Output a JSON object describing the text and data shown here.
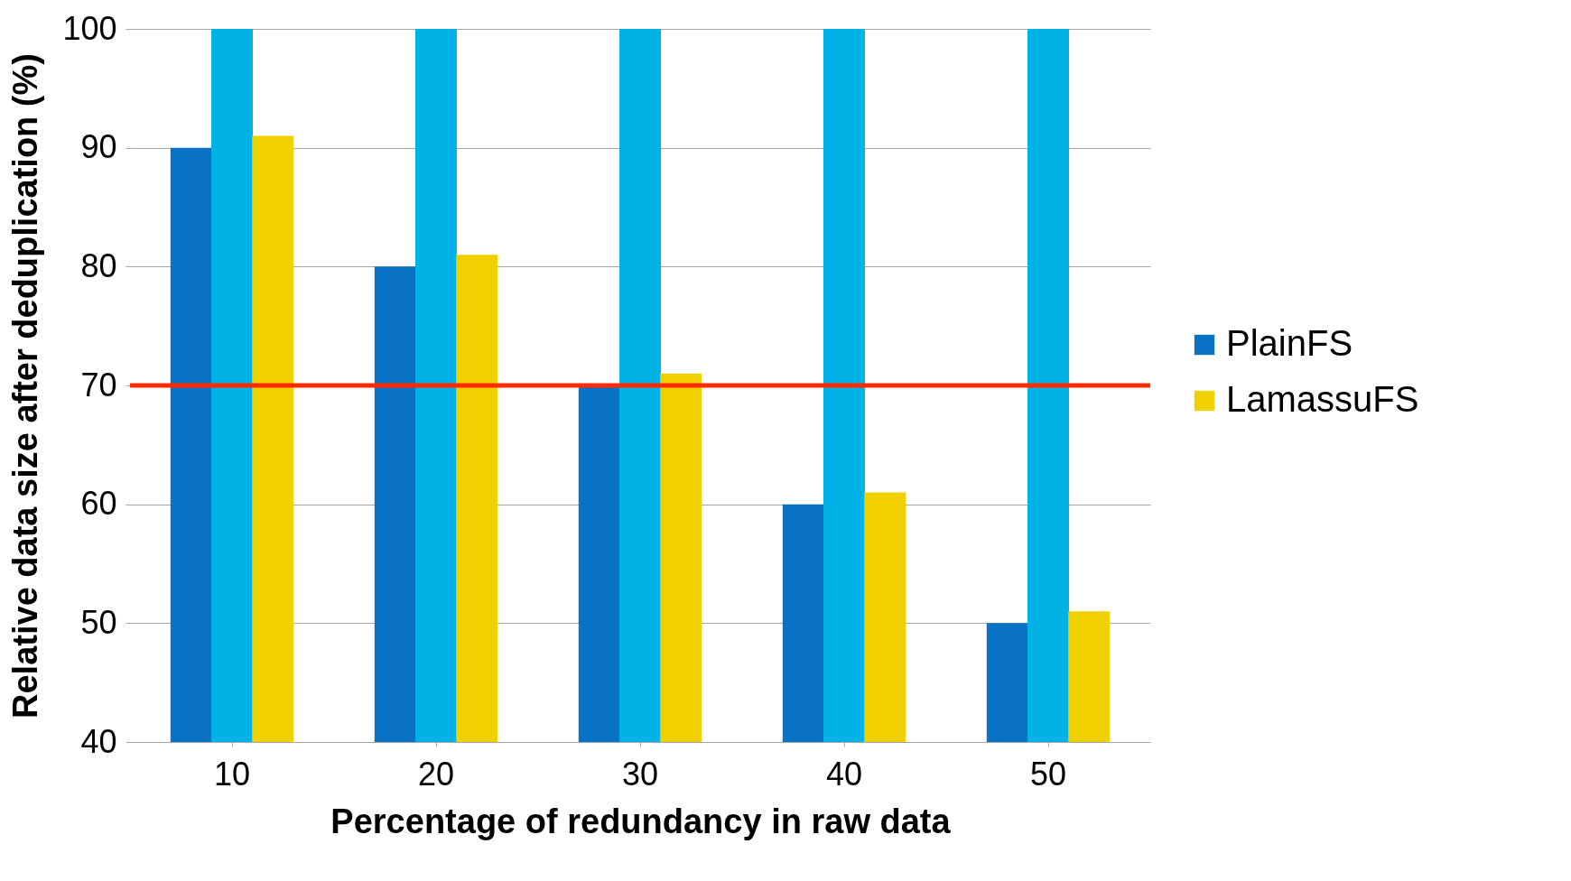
{
  "chart_data": {
    "type": "bar",
    "xlabel": "Percentage of redundancy in raw data",
    "ylabel": "Relative data size after deduplication (%)",
    "categories": [
      "10",
      "20",
      "30",
      "40",
      "50"
    ],
    "series": [
      {
        "name": "PlainFS",
        "color": "#0a72c4",
        "values": [
          90,
          80,
          70,
          60,
          50
        ]
      },
      {
        "color": "#00b2e6",
        "values": [
          100,
          100,
          100,
          100,
          100
        ]
      },
      {
        "name": "LamassuFS",
        "color": "#f0d000",
        "values": [
          91,
          81,
          71,
          61,
          51
        ]
      }
    ],
    "ylim": [
      40,
      100
    ],
    "yticks": [
      40,
      50,
      60,
      70,
      80,
      90,
      100
    ],
    "grid": "y",
    "legend": "right",
    "ref_lines": [
      {
        "axis": "y",
        "value": 70,
        "color": "#ff2a00"
      }
    ]
  }
}
